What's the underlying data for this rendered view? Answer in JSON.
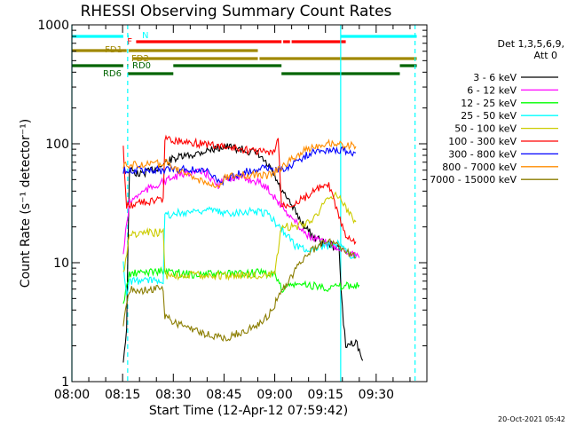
{
  "chart_data": {
    "type": "line",
    "title": "RHESSI Observing Summary Count Rates",
    "xlabel": "Start Time (12-Apr-12 07:59:42)",
    "ylabel": "Count Rate (s⁻¹ detector⁻¹)",
    "yscale": "log",
    "ylim": [
      1,
      1000
    ],
    "xlim_minutes": [
      0,
      105
    ],
    "x_ticks": [
      {
        "label": "08:00",
        "minutes": 0
      },
      {
        "label": "08:15",
        "minutes": 15
      },
      {
        "label": "08:30",
        "minutes": 30
      },
      {
        "label": "08:45",
        "minutes": 45
      },
      {
        "label": "09:00",
        "minutes": 60
      },
      {
        "label": "09:15",
        "minutes": 75
      },
      {
        "label": "09:30",
        "minutes": 90
      }
    ],
    "y_ticks": [
      {
        "label": "1",
        "value": 1
      },
      {
        "label": "10",
        "value": 10
      },
      {
        "label": "100",
        "value": 100
      },
      {
        "label": "1000",
        "value": 1000
      }
    ],
    "legend_header": [
      "Det 1,3,5,6,9,",
      "Att 0"
    ],
    "series": [
      {
        "name": "3 - 6 keV",
        "color": "#000000",
        "points": [
          [
            15.2,
            1.5
          ],
          [
            16.2,
            2.8
          ],
          [
            17,
            60
          ],
          [
            20,
            55
          ],
          [
            25,
            62
          ],
          [
            30,
            75
          ],
          [
            35,
            80
          ],
          [
            40,
            88
          ],
          [
            45,
            95
          ],
          [
            50,
            90
          ],
          [
            55,
            82
          ],
          [
            59,
            60
          ],
          [
            62,
            40
          ],
          [
            65,
            30
          ],
          [
            68,
            22
          ],
          [
            71,
            17
          ],
          [
            74,
            15
          ],
          [
            77,
            14
          ],
          [
            79,
            13
          ],
          [
            80,
            4
          ],
          [
            81,
            2
          ],
          [
            84,
            2.2
          ],
          [
            86,
            1.5
          ]
        ]
      },
      {
        "name": "6 - 12 keV",
        "color": "#ff00ff",
        "points": [
          [
            15.2,
            12
          ],
          [
            17,
            32
          ],
          [
            20,
            38
          ],
          [
            25,
            45
          ],
          [
            30,
            52
          ],
          [
            35,
            58
          ],
          [
            40,
            56
          ],
          [
            43,
            44
          ],
          [
            46,
            52
          ],
          [
            50,
            52
          ],
          [
            55,
            48
          ],
          [
            58,
            42
          ],
          [
            62,
            30
          ],
          [
            65,
            24
          ],
          [
            68,
            19
          ],
          [
            71,
            16
          ],
          [
            74,
            15
          ],
          [
            77,
            14
          ],
          [
            80,
            13
          ],
          [
            83,
            12
          ],
          [
            85,
            11
          ]
        ]
      },
      {
        "name": "12 - 25 keV",
        "color": "#00ff00",
        "points": [
          [
            15.2,
            4.5
          ],
          [
            17,
            8
          ],
          [
            25,
            8.5
          ],
          [
            35,
            8
          ],
          [
            45,
            8
          ],
          [
            55,
            8.2
          ],
          [
            60,
            8
          ],
          [
            62,
            6
          ],
          [
            65,
            6.5
          ],
          [
            70,
            6.5
          ],
          [
            75,
            6.2
          ],
          [
            80,
            6.3
          ],
          [
            85,
            6.5
          ]
        ]
      },
      {
        "name": "25 - 50 keV",
        "color": "#00ffff",
        "points": [
          [
            15.2,
            10
          ],
          [
            16.2,
            5
          ],
          [
            17,
            7
          ],
          [
            20,
            7
          ],
          [
            25,
            7.2
          ],
          [
            27,
            7.2
          ],
          [
            27.5,
            25
          ],
          [
            35,
            27
          ],
          [
            40,
            28
          ],
          [
            45,
            26
          ],
          [
            50,
            27
          ],
          [
            55,
            27
          ],
          [
            58,
            26
          ],
          [
            60,
            22
          ],
          [
            63,
            18
          ],
          [
            66,
            14
          ],
          [
            69,
            13
          ],
          [
            72,
            13
          ],
          [
            76,
            14
          ],
          [
            78,
            15
          ],
          [
            80,
            13
          ],
          [
            84,
            11
          ]
        ]
      },
      {
        "name": "50 - 100 keV",
        "color": "#cccc00",
        "points": [
          [
            15.2,
            8
          ],
          [
            17,
            17
          ],
          [
            20,
            17.5
          ],
          [
            25,
            18
          ],
          [
            27,
            18
          ],
          [
            27.5,
            7.8
          ],
          [
            35,
            7.9
          ],
          [
            45,
            7.8
          ],
          [
            55,
            7.9
          ],
          [
            60,
            7.8
          ],
          [
            62,
            20
          ],
          [
            66,
            20
          ],
          [
            70,
            22
          ],
          [
            73,
            27
          ],
          [
            76,
            35
          ],
          [
            78,
            38
          ],
          [
            80,
            32
          ],
          [
            84,
            22
          ]
        ]
      },
      {
        "name": "100 - 300 keV",
        "color": "#ff0000",
        "points": [
          [
            15.2,
            90
          ],
          [
            16.2,
            30
          ],
          [
            20,
            32
          ],
          [
            25,
            33
          ],
          [
            27,
            34
          ],
          [
            27.5,
            110
          ],
          [
            33,
            105
          ],
          [
            38,
            100
          ],
          [
            43,
            96
          ],
          [
            47,
            92
          ],
          [
            52,
            88
          ],
          [
            56,
            86
          ],
          [
            60,
            82
          ],
          [
            61,
            118
          ],
          [
            62,
            30
          ],
          [
            66,
            32
          ],
          [
            70,
            37
          ],
          [
            73,
            42
          ],
          [
            76,
            44
          ],
          [
            78,
            30
          ],
          [
            81,
            16
          ],
          [
            84,
            15
          ]
        ]
      },
      {
        "name": "300 - 800 keV",
        "color": "#0000ff",
        "points": [
          [
            15.2,
            60
          ],
          [
            20,
            60
          ],
          [
            25,
            60
          ],
          [
            27,
            60
          ],
          [
            30,
            61
          ],
          [
            35,
            61
          ],
          [
            40,
            58
          ],
          [
            44,
            48
          ],
          [
            48,
            54
          ],
          [
            53,
            60
          ],
          [
            57,
            64
          ],
          [
            60,
            60
          ],
          [
            63,
            62
          ],
          [
            66,
            70
          ],
          [
            70,
            82
          ],
          [
            74,
            88
          ],
          [
            77,
            90
          ],
          [
            80,
            88
          ],
          [
            84,
            84
          ]
        ]
      },
      {
        "name": "800 - 7000 keV",
        "color": "#ff8c00",
        "points": [
          [
            15.2,
            65
          ],
          [
            20,
            67
          ],
          [
            25,
            68
          ],
          [
            27,
            68
          ],
          [
            28,
            70
          ],
          [
            32,
            60
          ],
          [
            35,
            52
          ],
          [
            40,
            48
          ],
          [
            43,
            42
          ],
          [
            45,
            52
          ],
          [
            50,
            54
          ],
          [
            55,
            55
          ],
          [
            58,
            54
          ],
          [
            60,
            58
          ],
          [
            63,
            66
          ],
          [
            66,
            78
          ],
          [
            70,
            92
          ],
          [
            74,
            100
          ],
          [
            77,
            102
          ],
          [
            80,
            98
          ],
          [
            84,
            95
          ]
        ]
      },
      {
        "name": "7000 - 15000 keV",
        "color": "#8b7d00",
        "points": [
          [
            15.2,
            3
          ],
          [
            17,
            6
          ],
          [
            20,
            5.8
          ],
          [
            25,
            6
          ],
          [
            27,
            6
          ],
          [
            27.5,
            3.5
          ],
          [
            30,
            3.2
          ],
          [
            35,
            2.8
          ],
          [
            40,
            2.5
          ],
          [
            45,
            2.3
          ],
          [
            50,
            2.6
          ],
          [
            55,
            3
          ],
          [
            58,
            3.6
          ],
          [
            61,
            5
          ],
          [
            64,
            7
          ],
          [
            67,
            9.5
          ],
          [
            70,
            12
          ],
          [
            73,
            14
          ],
          [
            76,
            15
          ],
          [
            78,
            14
          ],
          [
            80,
            13
          ],
          [
            84,
            11
          ]
        ]
      }
    ],
    "status_bars": [
      {
        "label": "N",
        "color": "#00ffff",
        "segments": [
          [
            0,
            15.2
          ],
          [
            16.5,
            16.8
          ],
          [
            79.5,
            102
          ]
        ]
      },
      {
        "label": "F",
        "color": "#ff0000",
        "segments": [
          [
            19,
            62
          ],
          [
            62.5,
            64.5
          ],
          [
            65,
            81
          ]
        ]
      },
      {
        "label": "FD1",
        "color": "#a08800",
        "segments": [
          [
            0,
            16.2
          ],
          [
            16.8,
            55
          ]
        ]
      },
      {
        "label": "FD2",
        "color": "#a08800",
        "segments": [
          [
            18,
            55
          ],
          [
            55.5,
            102
          ]
        ]
      },
      {
        "label": "RD0",
        "color": "#006400",
        "segments": [
          [
            0,
            15.2
          ],
          [
            16.3,
            16.7
          ],
          [
            30,
            62
          ],
          [
            97,
            102
          ]
        ]
      },
      {
        "label": "RD6",
        "color": "#006400",
        "segments": [
          [
            16.5,
            30
          ],
          [
            62,
            97
          ]
        ]
      }
    ],
    "vertical_markers": [
      {
        "minutes": 0,
        "style": "solid"
      },
      {
        "minutes": 16.5,
        "style": "dashed"
      },
      {
        "minutes": 79.5,
        "style": "solid"
      },
      {
        "minutes": 101.5,
        "style": "dashed"
      }
    ],
    "footer_date": "20-Oct-2021 05:42"
  }
}
